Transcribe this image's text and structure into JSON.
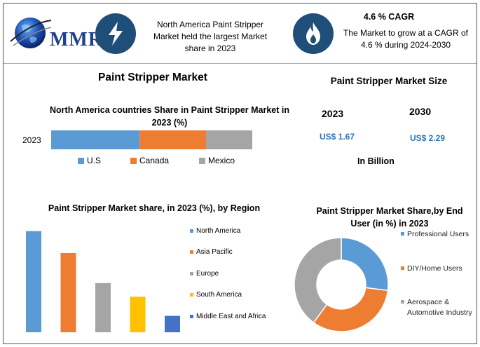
{
  "header": {
    "logo_text": "MMR",
    "headline": "North America Paint Stripper Market held the largest Market share in 2023",
    "cagr_title": "4.6 % CAGR",
    "cagr_text": "The Market to grow at a CAGR of 4.6 % during 2024-2030",
    "colors": {
      "icon_bg": "#1f4e79",
      "logo": "#1f3f8f"
    }
  },
  "main_title": "Paint Stripper Market",
  "market_size": {
    "title": "Paint Stripper Market Size",
    "years": [
      "2023",
      "2030"
    ],
    "values": [
      "US$ 1.67",
      "US$ 2.29"
    ],
    "unit": "In Billion"
  },
  "chart_data": [
    {
      "type": "bar",
      "orientation": "horizontal-stacked",
      "title": "North America countries Share in Paint Stripper Market in 2023 (%)",
      "categories": [
        "2023"
      ],
      "series": [
        {
          "name": "U.S",
          "values": [
            44
          ],
          "color": "#5b9bd5"
        },
        {
          "name": "Canada",
          "values": [
            33
          ],
          "color": "#ed7d31"
        },
        {
          "name": "Mexico",
          "values": [
            23
          ],
          "color": "#a5a5a5"
        }
      ],
      "xlim": [
        0,
        100
      ],
      "legend": "bottom"
    },
    {
      "type": "bar",
      "title": "Paint Stripper Market share, in 2023 (%), by Region",
      "categories": [
        "North America",
        "Asia Pacific",
        "Europe",
        "South America",
        "Middle East and Africa"
      ],
      "values": [
        37,
        29,
        18,
        13,
        6
      ],
      "colors": [
        "#5b9bd5",
        "#ed7d31",
        "#a5a5a5",
        "#ffc000",
        "#4472c4"
      ],
      "ylim": [
        0,
        40
      ],
      "legend": "right"
    },
    {
      "type": "pie",
      "variant": "donut",
      "title": "Paint Stripper Market Share,by End User (in %) in 2023",
      "categories": [
        "Professional Users",
        "DIY/Home Users",
        "Aerospace & Automotive Industry"
      ],
      "values": [
        27,
        33,
        40
      ],
      "colors": [
        "#5b9bd5",
        "#ed7d31",
        "#a5a5a5"
      ],
      "legend": "right"
    }
  ]
}
